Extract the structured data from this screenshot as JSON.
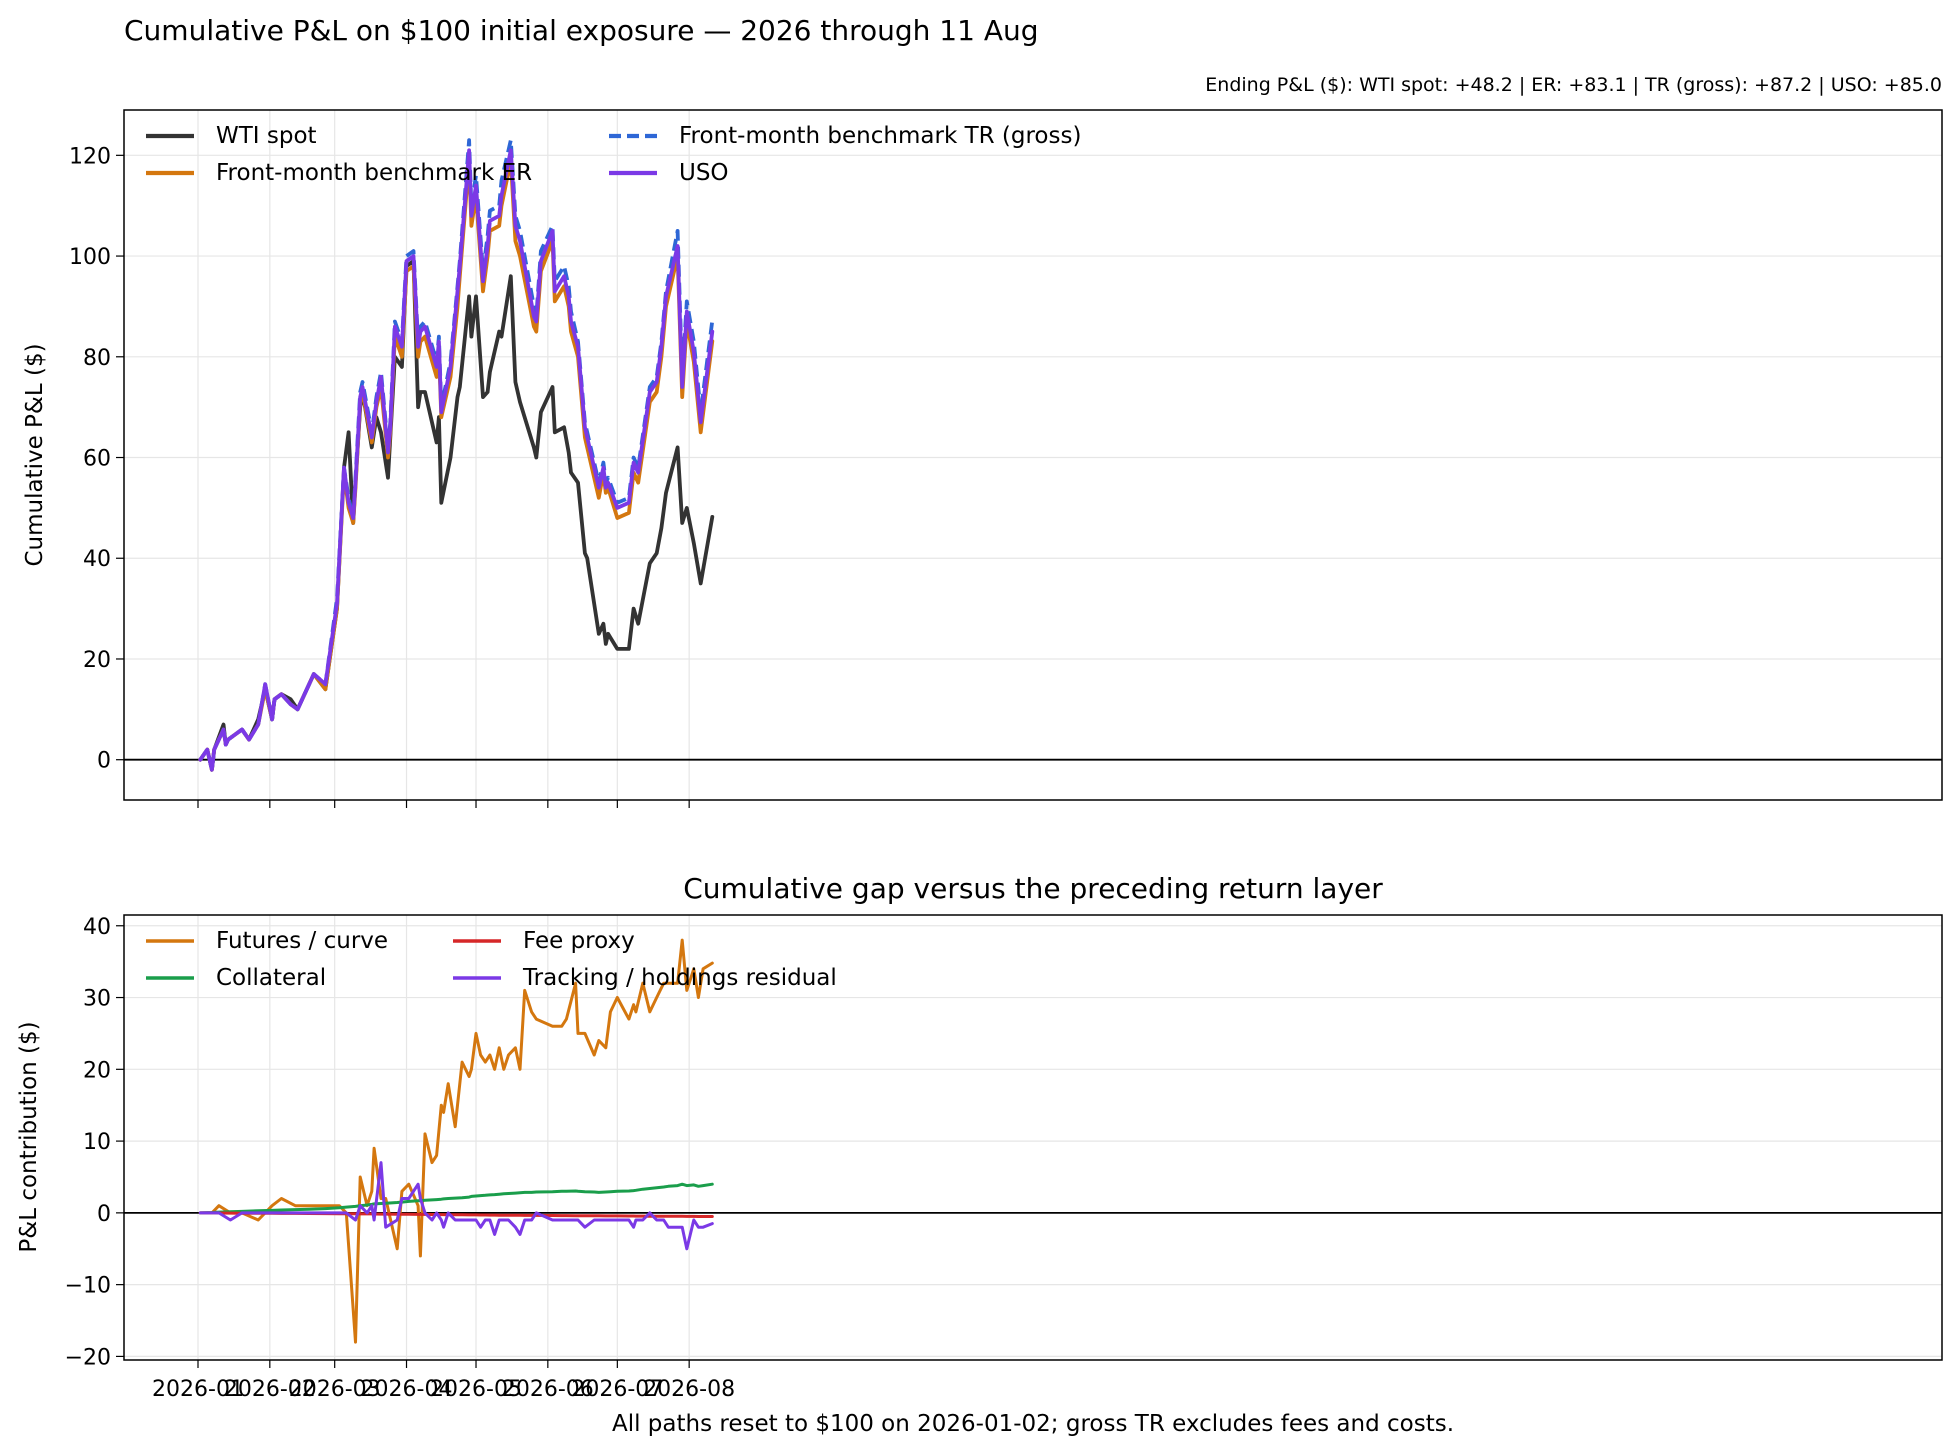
{
  "title": "Cumulative P&L on $100 initial exposure — 2026 through 11 Aug",
  "subtitle": "Ending P&L ($):  WTI spot: +48.2  |  ER: +83.1  |  TR (gross): +87.2  |  USO: +85.0",
  "footer": "All paths reset to $100 on 2026-01-02; gross TR excludes fees and costs.",
  "chart_data": [
    {
      "type": "line",
      "ylabel": "Cumulative P&L ($)",
      "xlabel": "",
      "ylim": [
        -8,
        129
      ],
      "yticks": [
        0,
        20,
        40,
        60,
        80,
        100,
        120
      ],
      "xticks": [
        "2026-01",
        "2026-02",
        "2026-03",
        "2026-04",
        "2026-05",
        "2026-06",
        "2026-07",
        "2026-08"
      ],
      "x": [
        "2026-01-02",
        "2026-01-05",
        "2026-01-07",
        "2026-01-08",
        "2026-01-12",
        "2026-01-13",
        "2026-01-14",
        "2026-01-20",
        "2026-01-23",
        "2026-01-27",
        "2026-01-30",
        "2026-02-02",
        "2026-02-03",
        "2026-02-06",
        "2026-02-10",
        "2026-02-13",
        "2026-02-20",
        "2026-02-25",
        "2026-03-02",
        "2026-03-05",
        "2026-03-07",
        "2026-03-09",
        "2026-03-10",
        "2026-03-12",
        "2026-03-13",
        "2026-03-17",
        "2026-03-19",
        "2026-03-21",
        "2026-03-24",
        "2026-03-25",
        "2026-03-27",
        "2026-03-30",
        "2026-04-01",
        "2026-04-04",
        "2026-04-06",
        "2026-04-07",
        "2026-04-09",
        "2026-04-14",
        "2026-04-15",
        "2026-04-16",
        "2026-04-20",
        "2026-04-23",
        "2026-04-24",
        "2026-04-28",
        "2026-04-29",
        "2026-05-01",
        "2026-05-04",
        "2026-05-06",
        "2026-05-07",
        "2026-05-11",
        "2026-05-12",
        "2026-05-16",
        "2026-05-18",
        "2026-05-20",
        "2026-05-26",
        "2026-05-27",
        "2026-05-29",
        "2026-06-03",
        "2026-06-04",
        "2026-06-08",
        "2026-06-10",
        "2026-06-11",
        "2026-06-14",
        "2026-06-17",
        "2026-06-18",
        "2026-06-23",
        "2026-06-25",
        "2026-06-26",
        "2026-06-27",
        "2026-07-01",
        "2026-07-06",
        "2026-07-08",
        "2026-07-10",
        "2026-07-15",
        "2026-07-18",
        "2026-07-20",
        "2026-07-22",
        "2026-07-27",
        "2026-07-29",
        "2026-07-31",
        "2026-08-03",
        "2026-08-06",
        "2026-08-11"
      ],
      "legend_location": "upper left",
      "series": [
        {
          "name": "WTI spot",
          "color": "#333333",
          "dash": "solid",
          "values": [
            0,
            2,
            -2,
            2,
            7,
            3,
            4,
            6,
            4,
            8,
            14,
            8,
            12,
            13,
            12,
            10,
            17,
            14,
            30,
            58,
            65,
            47,
            55,
            70,
            73,
            62,
            68,
            65,
            56,
            64,
            80,
            78,
            98,
            99,
            70,
            73,
            73,
            63,
            68,
            51,
            60,
            72,
            74,
            92,
            84,
            92,
            72,
            73,
            77,
            85,
            84,
            96,
            75,
            71,
            62,
            60,
            69,
            74,
            65,
            66,
            61,
            57,
            55,
            41,
            40,
            25,
            27,
            23,
            25,
            22,
            22,
            30,
            27,
            39,
            41,
            46,
            53,
            62,
            47,
            50,
            43,
            35,
            48.2
          ]
        },
        {
          "name": "Front-month benchmark ER",
          "color": "#d4770f",
          "dash": "solid",
          "values": [
            0,
            2,
            -2,
            2,
            6,
            3,
            4,
            6,
            4,
            7,
            14,
            8,
            12,
            13,
            11,
            10,
            17,
            14,
            30,
            57,
            50,
            47,
            54,
            71,
            73,
            63,
            70,
            74,
            60,
            65,
            84,
            80,
            97,
            98,
            80,
            83,
            84,
            76,
            81,
            68,
            76,
            90,
            96,
            119,
            106,
            112,
            93,
            100,
            105,
            106,
            110,
            119,
            103,
            100,
            86,
            85,
            97,
            103,
            91,
            94,
            90,
            85,
            80,
            64,
            62,
            52,
            57,
            53,
            54,
            48,
            49,
            57,
            55,
            71,
            73,
            80,
            90,
            100,
            72,
            87,
            79,
            65,
            83.1
          ]
        },
        {
          "name": "Front-month benchmark TR (gross)",
          "color": "#2e67d6",
          "dash": "dashed",
          "values": [
            0,
            2,
            -2,
            2,
            6,
            3,
            4,
            6,
            4,
            7,
            15,
            8,
            12,
            13,
            11,
            10,
            17,
            15,
            32,
            58,
            52,
            48,
            56,
            73,
            75,
            65,
            72,
            77,
            62,
            67,
            87,
            83,
            100,
            101,
            83,
            86,
            87,
            79,
            84,
            70,
            79,
            94,
            99,
            123,
            110,
            116,
            97,
            104,
            109,
            110,
            115,
            123,
            108,
            105,
            90,
            88,
            101,
            106,
            95,
            98,
            94,
            89,
            83,
            67,
            65,
            55,
            59,
            55,
            56,
            51,
            52,
            60,
            58,
            74,
            76,
            83,
            93,
            105,
            76,
            91,
            83,
            69,
            87.2
          ]
        },
        {
          "name": "USO",
          "color": "#7b39e6",
          "dash": "solid",
          "values": [
            0,
            2,
            -2,
            2,
            6,
            3,
            4,
            6,
            4,
            7,
            15,
            8,
            12,
            13,
            11,
            10,
            17,
            15,
            31,
            58,
            51,
            48,
            55,
            72,
            74,
            64,
            71,
            76,
            61,
            66,
            86,
            82,
            99,
            100,
            82,
            85,
            86,
            78,
            83,
            69,
            78,
            93,
            98,
            121,
            108,
            114,
            95,
            102,
            107,
            108,
            112,
            121,
            106,
            103,
            88,
            87,
            99,
            105,
            93,
            96,
            92,
            87,
            82,
            66,
            64,
            54,
            58,
            54,
            55,
            50,
            51,
            59,
            57,
            73,
            75,
            82,
            92,
            102,
            74,
            89,
            81,
            67,
            85.0
          ]
        }
      ]
    },
    {
      "type": "line",
      "title": "Cumulative gap versus the preceding return layer",
      "ylabel": "P&L contribution ($)",
      "xlabel": "",
      "ylim": [
        -20.5,
        41.5
      ],
      "yticks": [
        -20,
        -10,
        0,
        10,
        20,
        30,
        40
      ],
      "xticks": [
        "2026-01",
        "2026-02",
        "2026-03",
        "2026-04",
        "2026-05",
        "2026-06",
        "2026-07",
        "2026-08"
      ],
      "x": [
        "2026-01-02",
        "2026-01-07",
        "2026-01-10",
        "2026-01-15",
        "2026-01-20",
        "2026-01-27",
        "2026-02-02",
        "2026-02-06",
        "2026-02-12",
        "2026-02-18",
        "2026-02-25",
        "2026-03-03",
        "2026-03-06",
        "2026-03-10",
        "2026-03-12",
        "2026-03-15",
        "2026-03-17",
        "2026-03-18",
        "2026-03-21",
        "2026-03-23",
        "2026-03-28",
        "2026-03-30",
        "2026-04-02",
        "2026-04-06",
        "2026-04-07",
        "2026-04-09",
        "2026-04-12",
        "2026-04-14",
        "2026-04-16",
        "2026-04-17",
        "2026-04-19",
        "2026-04-22",
        "2026-04-25",
        "2026-04-28",
        "2026-04-29",
        "2026-05-01",
        "2026-05-03",
        "2026-05-05",
        "2026-05-07",
        "2026-05-09",
        "2026-05-11",
        "2026-05-13",
        "2026-05-15",
        "2026-05-18",
        "2026-05-20",
        "2026-05-22",
        "2026-05-25",
        "2026-05-27",
        "2026-06-03",
        "2026-06-07",
        "2026-06-09",
        "2026-06-13",
        "2026-06-14",
        "2026-06-17",
        "2026-06-21",
        "2026-06-23",
        "2026-06-26",
        "2026-06-28",
        "2026-07-01",
        "2026-07-06",
        "2026-07-08",
        "2026-07-09",
        "2026-07-12",
        "2026-07-15",
        "2026-07-18",
        "2026-07-21",
        "2026-07-23",
        "2026-07-27",
        "2026-07-29",
        "2026-07-31",
        "2026-08-03",
        "2026-08-05",
        "2026-08-07",
        "2026-08-11"
      ],
      "legend_location": "upper left",
      "series": [
        {
          "name": "Futures / curve",
          "color": "#d4770f",
          "values": [
            0,
            0,
            1,
            0,
            0,
            -1,
            1,
            2,
            1,
            1,
            1,
            1,
            0,
            -18,
            5,
            1,
            3,
            9,
            2,
            2,
            -5,
            3,
            4,
            1,
            -6,
            11,
            7,
            8,
            15,
            14,
            18,
            12,
            21,
            19,
            20,
            25,
            22,
            21,
            22,
            20,
            23,
            20,
            22,
            23,
            20,
            31,
            28,
            27,
            26,
            26,
            27,
            32,
            25,
            25,
            22,
            24,
            23,
            28,
            30,
            27,
            29,
            28,
            32,
            28,
            30,
            32,
            32,
            32,
            38,
            31,
            34,
            30,
            34,
            34.8
          ]
        },
        {
          "name": "Collateral",
          "color": "#1a9e4b",
          "values": [
            0,
            0.05,
            0.1,
            0.15,
            0.2,
            0.3,
            0.35,
            0.4,
            0.45,
            0.5,
            0.6,
            0.7,
            0.8,
            0.9,
            1.0,
            1.1,
            1.2,
            1.25,
            1.3,
            1.35,
            1.45,
            1.5,
            1.6,
            1.7,
            1.7,
            1.75,
            1.8,
            1.85,
            1.9,
            1.95,
            2.0,
            2.05,
            2.1,
            2.2,
            2.3,
            2.35,
            2.4,
            2.45,
            2.5,
            2.55,
            2.6,
            2.65,
            2.7,
            2.75,
            2.8,
            2.85,
            2.85,
            2.9,
            2.95,
            3.0,
            3.0,
            3.05,
            3.0,
            2.95,
            2.9,
            2.85,
            2.9,
            2.95,
            3.0,
            3.05,
            3.1,
            3.15,
            3.3,
            3.4,
            3.5,
            3.6,
            3.7,
            3.8,
            4.0,
            3.8,
            3.9,
            3.7,
            3.8,
            4.0
          ]
        },
        {
          "name": "Fee proxy",
          "color": "#d62728",
          "values": [
            0,
            -0.01,
            -0.02,
            -0.03,
            -0.04,
            -0.05,
            -0.06,
            -0.07,
            -0.08,
            -0.09,
            -0.1,
            -0.11,
            -0.12,
            -0.13,
            -0.14,
            -0.15,
            -0.15,
            -0.16,
            -0.17,
            -0.17,
            -0.18,
            -0.19,
            -0.2,
            -0.21,
            -0.21,
            -0.22,
            -0.23,
            -0.23,
            -0.24,
            -0.24,
            -0.25,
            -0.26,
            -0.27,
            -0.28,
            -0.28,
            -0.29,
            -0.3,
            -0.3,
            -0.31,
            -0.31,
            -0.32,
            -0.33,
            -0.33,
            -0.34,
            -0.34,
            -0.35,
            -0.36,
            -0.36,
            -0.37,
            -0.38,
            -0.38,
            -0.39,
            -0.39,
            -0.4,
            -0.41,
            -0.41,
            -0.42,
            -0.42,
            -0.43,
            -0.44,
            -0.44,
            -0.45,
            -0.45,
            -0.46,
            -0.46,
            -0.47,
            -0.47,
            -0.48,
            -0.48,
            -0.49,
            -0.49,
            -0.5,
            -0.5,
            -0.5
          ]
        },
        {
          "name": "Tracking / holdings residual",
          "color": "#7b39e6",
          "values": [
            0,
            0,
            0,
            -1,
            0,
            0,
            0,
            0,
            0,
            0,
            0,
            0,
            0,
            -1,
            1,
            0,
            1,
            -1,
            7,
            -2,
            -1,
            2,
            2,
            4,
            2,
            0,
            -1,
            0,
            -1,
            -2,
            0,
            -1,
            -1,
            -1,
            -1,
            -1,
            -2,
            -1,
            -1,
            -3,
            -1,
            -1,
            -1,
            -2,
            -3,
            -1,
            -1,
            0,
            -1,
            -1,
            -1,
            -1,
            -1,
            -2,
            -1,
            -1,
            -1,
            -1,
            -1,
            -1,
            -2,
            -1,
            -1,
            0,
            -1,
            -1,
            -2,
            -2,
            -2,
            -5,
            -1,
            -2,
            -2,
            -1.5
          ]
        }
      ]
    }
  ]
}
